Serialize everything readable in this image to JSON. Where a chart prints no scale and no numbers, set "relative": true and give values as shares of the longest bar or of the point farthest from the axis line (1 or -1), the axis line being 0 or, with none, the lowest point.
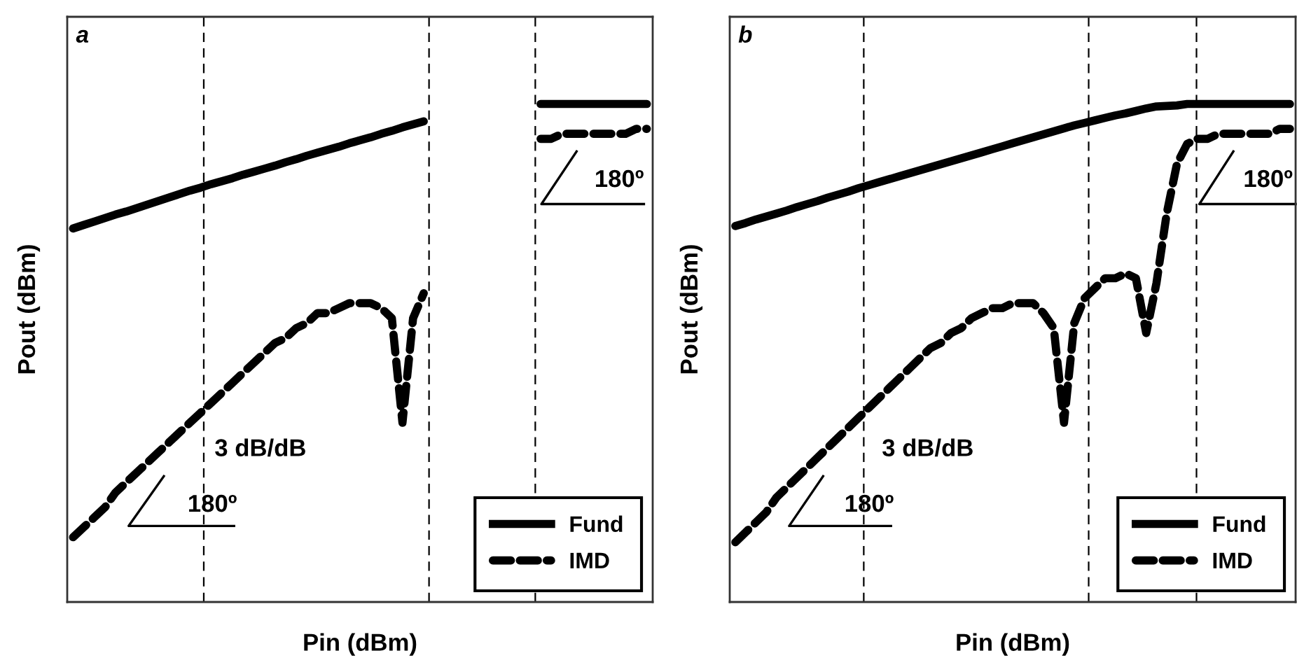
{
  "chart_data": [
    {
      "type": "line",
      "title": "a",
      "xlabel": "Pin (dBm)",
      "ylabel": "Pout (dBm)",
      "relative": true,
      "legend": "bottom right",
      "categories": [
        null,
        null,
        null,
        null,
        null,
        null,
        null,
        null,
        null,
        null,
        null,
        null,
        null,
        null,
        null,
        null,
        null,
        null,
        null,
        null,
        null,
        null,
        null,
        null,
        null,
        null,
        null,
        null,
        null,
        null,
        null,
        null,
        null,
        null,
        null,
        null,
        null,
        null,
        null,
        null,
        null,
        null,
        null,
        null,
        null,
        null,
        null,
        null,
        null,
        null,
        null,
        null,
        null,
        null,
        null
      ],
      "series": [
        {
          "name": "Fund",
          "color": "#000000",
          "line_style": "solid",
          "values": [
            0.75,
            0.757,
            0.764,
            0.771,
            0.778,
            0.784,
            0.791,
            0.798,
            0.805,
            0.812,
            0.819,
            0.826,
            0.832,
            0.839,
            0.845,
            0.851,
            0.858,
            0.864,
            0.87,
            0.876,
            0.883,
            0.889,
            0.896,
            0.902,
            0.908,
            0.914,
            0.921,
            0.927,
            0.933,
            0.94,
            0.946,
            0.953,
            0.959,
            0.965,
            null,
            null,
            null,
            null,
            null,
            null,
            null,
            null,
            null,
            null,
            null,
            null,
            null,
            null,
            null,
            null,
            null,
            null,
            null,
            null,
            null
          ]
        },
        {
          "name": "IMD",
          "color": "#000000",
          "line_style": "dashed",
          "values": [
            0.13,
            0.15,
            0.17,
            0.19,
            0.22,
            0.24,
            0.26,
            0.28,
            0.3,
            0.32,
            0.34,
            0.36,
            0.38,
            0.4,
            0.42,
            0.44,
            0.46,
            0.48,
            0.5,
            0.52,
            0.53,
            0.55,
            0.56,
            0.58,
            0.58,
            0.59,
            0.6,
            0.6,
            0.6,
            0.59,
            0.57,
            0.36,
            0.57,
            0.62,
            null,
            null,
            null,
            null,
            null,
            null,
            null,
            null,
            null,
            null,
            null,
            null,
            null,
            null,
            null,
            null,
            null,
            null,
            null,
            null,
            null
          ]
        },
        {
          "color": "#000000",
          "line_style": "solid",
          "values": [
            null,
            null,
            null,
            null,
            null,
            null,
            null,
            null,
            null,
            null,
            null,
            null,
            null,
            null,
            null,
            null,
            null,
            null,
            null,
            null,
            null,
            null,
            null,
            null,
            null,
            null,
            null,
            null,
            null,
            null,
            null,
            null,
            null,
            null,
            null,
            null,
            null,
            null,
            null,
            null,
            null,
            null,
            null,
            null,
            1.0,
            1.0,
            1.0,
            1.0,
            1.0,
            1.0,
            1.0,
            1.0,
            1.0,
            1.0,
            1.0
          ]
        },
        {
          "color": "#000000",
          "line_style": "dashed",
          "values": [
            null,
            null,
            null,
            null,
            null,
            null,
            null,
            null,
            null,
            null,
            null,
            null,
            null,
            null,
            null,
            null,
            null,
            null,
            null,
            null,
            null,
            null,
            null,
            null,
            null,
            null,
            null,
            null,
            null,
            null,
            null,
            null,
            null,
            null,
            null,
            null,
            null,
            null,
            null,
            null,
            null,
            null,
            null,
            null,
            0.93,
            0.93,
            0.94,
            0.94,
            0.94,
            0.94,
            0.94,
            0.94,
            0.94,
            0.95,
            0.95
          ]
        }
      ],
      "annotations": [
        "3 dB/dB",
        "180º",
        "180º"
      ]
    },
    {
      "type": "line",
      "title": "b",
      "xlabel": "Pin (dBm)",
      "ylabel": "Pout (dBm)",
      "relative": true,
      "legend": "bottom right",
      "categories": [
        null,
        null,
        null,
        null,
        null,
        null,
        null,
        null,
        null,
        null,
        null,
        null,
        null,
        null,
        null,
        null,
        null,
        null,
        null,
        null,
        null,
        null,
        null,
        null,
        null,
        null,
        null,
        null,
        null,
        null,
        null,
        null,
        null,
        null,
        null,
        null,
        null,
        null,
        null,
        null,
        null,
        null,
        null,
        null,
        null,
        null,
        null,
        null,
        null,
        null,
        null,
        null,
        null,
        null,
        null
      ],
      "series": [
        {
          "name": "Fund",
          "color": "#000000",
          "line_style": "solid",
          "values": [
            0.755,
            0.761,
            0.768,
            0.774,
            0.78,
            0.786,
            0.793,
            0.799,
            0.805,
            0.812,
            0.818,
            0.824,
            0.831,
            0.837,
            0.843,
            0.849,
            0.855,
            0.861,
            0.867,
            0.873,
            0.879,
            0.885,
            0.891,
            0.897,
            0.903,
            0.909,
            0.915,
            0.921,
            0.927,
            0.933,
            0.939,
            0.945,
            0.951,
            0.957,
            0.962,
            0.967,
            0.972,
            0.977,
            0.981,
            0.986,
            0.991,
            0.995,
            0.996,
            0.997,
            1.0,
            1.0,
            1.0,
            1.0,
            1.0,
            1.0,
            1.0,
            1.0,
            1.0,
            1.0,
            1.0
          ]
        },
        {
          "name": "IMD",
          "color": "#000000",
          "line_style": "dashed",
          "values": [
            0.12,
            0.14,
            0.16,
            0.18,
            0.21,
            0.23,
            0.25,
            0.27,
            0.29,
            0.31,
            0.33,
            0.35,
            0.37,
            0.39,
            0.41,
            0.43,
            0.45,
            0.47,
            0.49,
            0.51,
            0.52,
            0.54,
            0.55,
            0.57,
            0.58,
            0.59,
            0.59,
            0.6,
            0.6,
            0.6,
            0.58,
            0.55,
            0.36,
            0.56,
            0.61,
            0.63,
            0.65,
            0.65,
            0.66,
            0.65,
            0.54,
            0.64,
            0.78,
            0.88,
            0.92,
            0.93,
            0.93,
            0.94,
            0.94,
            0.94,
            0.94,
            0.94,
            0.94,
            0.95,
            0.95
          ]
        }
      ],
      "annotations": [
        "3 dB/dB",
        "180º",
        "180º"
      ]
    }
  ]
}
